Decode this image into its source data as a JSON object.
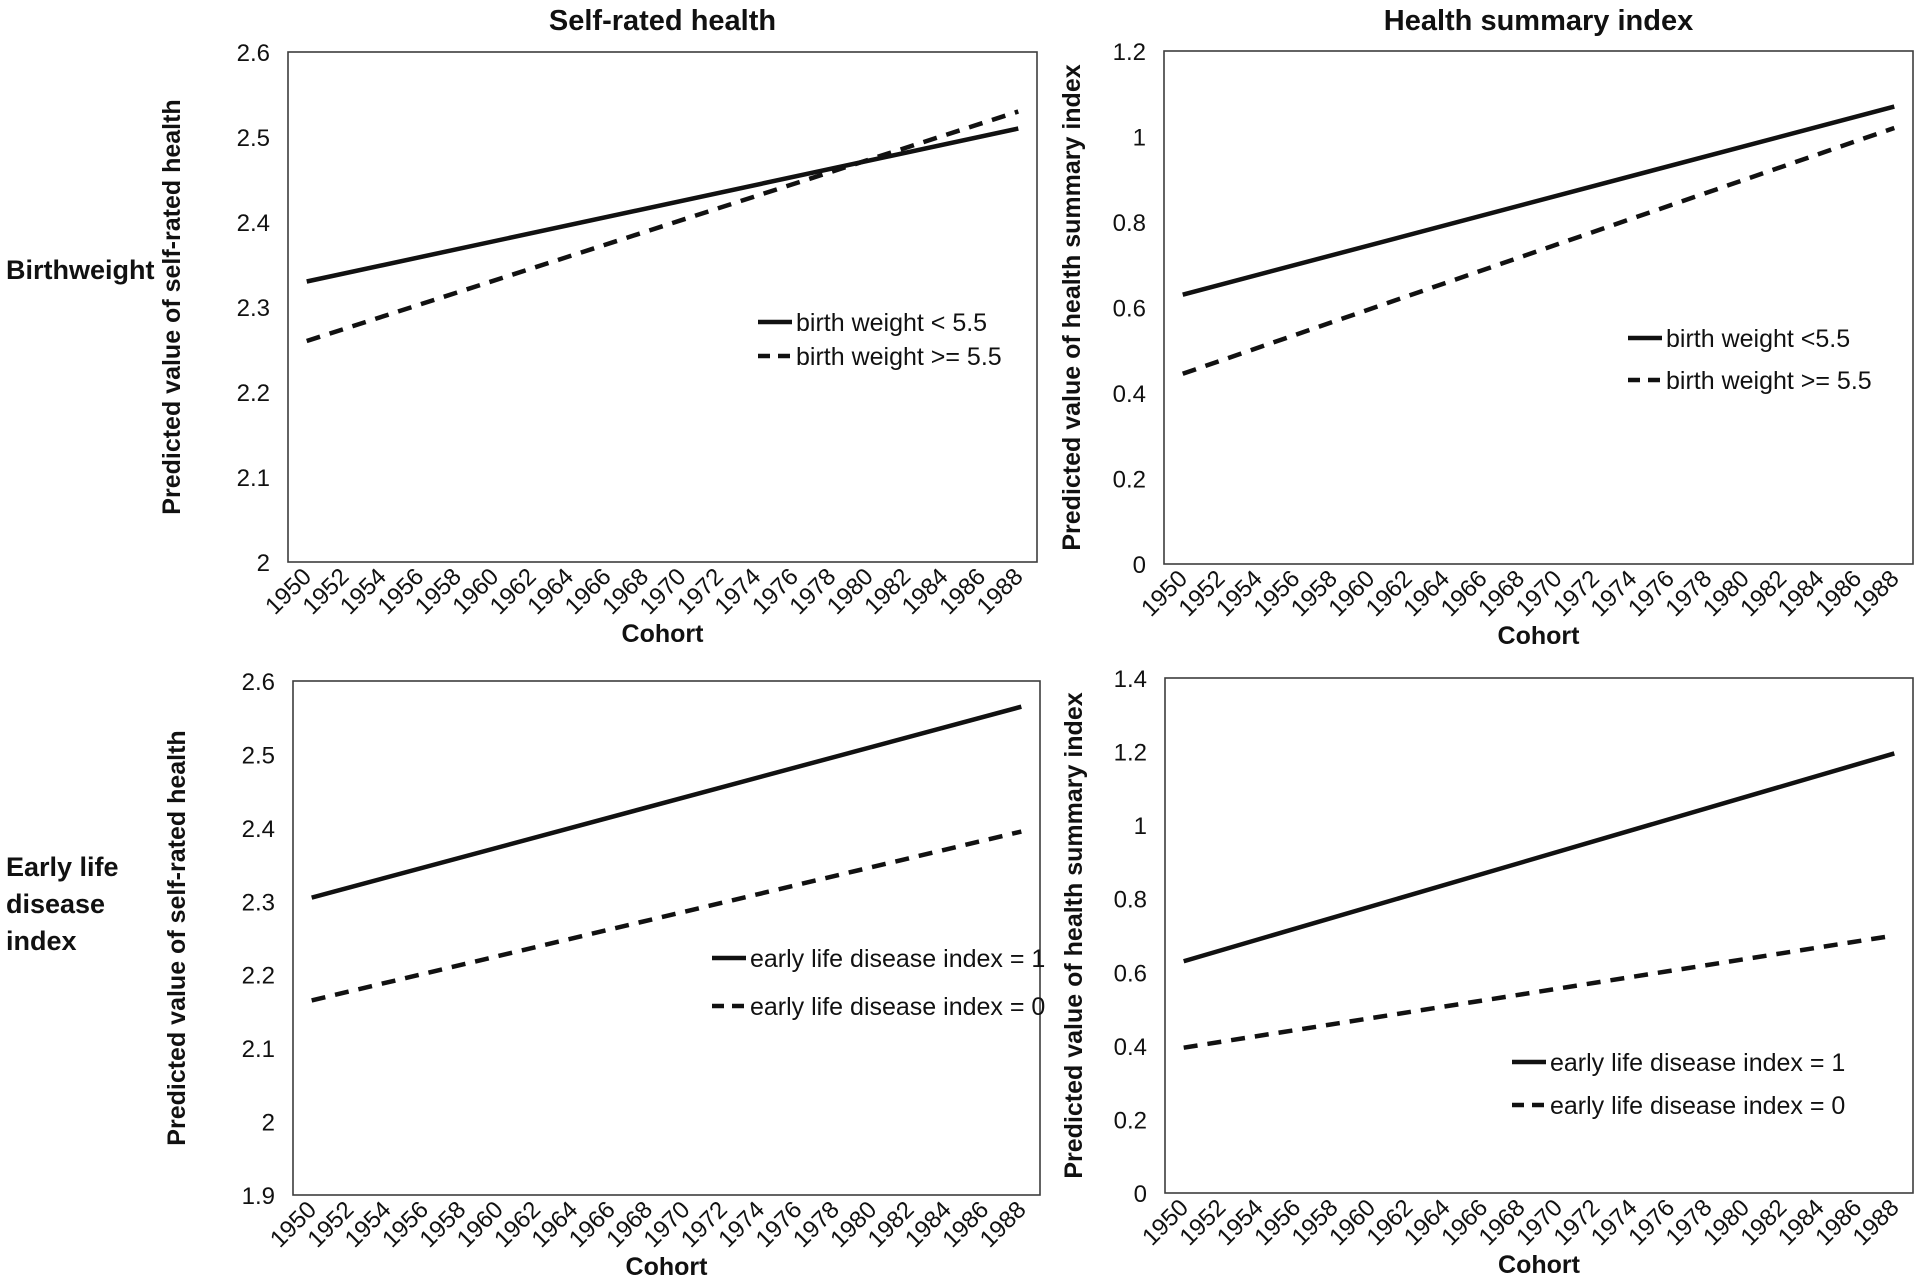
{
  "style": {
    "line_color": "#111111",
    "axis_color": "#3d3d3d",
    "text_color": "#111111",
    "background": "#ffffff"
  },
  "row_labels": [
    {
      "label": "Birthweight"
    },
    {
      "label": "Early life\ndisease\nindex"
    }
  ],
  "column_titles": [
    "Self-rated health",
    "Health summary index"
  ],
  "chart_data": [
    {
      "id": "self-rated-health-by-birthweight",
      "type": "line",
      "title": "Self-rated health",
      "row_label": "Birthweight",
      "xlabel": "Cohort",
      "ylabel": "Predicted value of self-rated health",
      "ylim": [
        2,
        2.6
      ],
      "y_ticks": [
        2,
        2.1,
        2.2,
        2.3,
        2.4,
        2.5,
        2.6
      ],
      "x_tick_labels": [
        "1950",
        "1952",
        "1954",
        "1956",
        "1958",
        "1960",
        "1962",
        "1964",
        "1966",
        "1968",
        "1970",
        "1972",
        "1974",
        "1976",
        "1978",
        "1980",
        "1982",
        "1984",
        "1986",
        "1988"
      ],
      "grid": false,
      "legend_position": "inside-right",
      "series": [
        {
          "name": "birth weight < 5.5",
          "style": "solid",
          "x": [
            1950,
            1988
          ],
          "values": [
            2.33,
            2.51
          ]
        },
        {
          "name": "birth weight >= 5.5",
          "style": "dashed",
          "x": [
            1950,
            1988
          ],
          "values": [
            2.26,
            2.53
          ]
        }
      ]
    },
    {
      "id": "health-summary-index-by-birthweight",
      "type": "line",
      "title": "Health summary index",
      "row_label": "Birthweight",
      "xlabel": "Cohort",
      "ylabel": "Predicted value of health summary index",
      "ylim": [
        0,
        1.2
      ],
      "y_ticks": [
        0,
        0.2,
        0.4,
        0.6,
        0.8,
        1,
        1.2
      ],
      "x_tick_labels": [
        "1950",
        "1952",
        "1954",
        "1956",
        "1958",
        "1960",
        "1962",
        "1964",
        "1966",
        "1968",
        "1970",
        "1972",
        "1974",
        "1976",
        "1978",
        "1980",
        "1982",
        "1984",
        "1986",
        "1988"
      ],
      "grid": false,
      "legend_position": "inside-right",
      "series": [
        {
          "name": "birth weight <5.5",
          "style": "solid",
          "x": [
            1950,
            1988
          ],
          "values": [
            0.63,
            1.07
          ]
        },
        {
          "name": "birth weight >= 5.5",
          "style": "dashed",
          "x": [
            1950,
            1988
          ],
          "values": [
            0.445,
            1.02
          ]
        }
      ]
    },
    {
      "id": "self-rated-health-by-early-life-disease-index",
      "type": "line",
      "title": "",
      "row_label": "Early life disease index",
      "xlabel": "Cohort",
      "ylabel": "Predicted value of self-rated health",
      "ylim": [
        1.9,
        2.6
      ],
      "y_ticks": [
        1.9,
        2,
        2.1,
        2.2,
        2.3,
        2.4,
        2.5,
        2.6
      ],
      "x_tick_labels": [
        "1950",
        "1952",
        "1954",
        "1956",
        "1958",
        "1960",
        "1962",
        "1964",
        "1966",
        "1968",
        "1970",
        "1972",
        "1974",
        "1976",
        "1978",
        "1980",
        "1982",
        "1984",
        "1986",
        "1988"
      ],
      "grid": false,
      "legend_position": "inside-right",
      "series": [
        {
          "name": "early life disease index = 1",
          "style": "solid",
          "x": [
            1950,
            1988
          ],
          "values": [
            2.305,
            2.565
          ]
        },
        {
          "name": "early life disease index = 0",
          "style": "dashed",
          "x": [
            1950,
            1988
          ],
          "values": [
            2.165,
            2.395
          ]
        }
      ]
    },
    {
      "id": "health-summary-index-by-early-life-disease-index",
      "type": "line",
      "title": "",
      "row_label": "Early life disease index",
      "xlabel": "Cohort",
      "ylabel": "Predicted value of health summary index",
      "ylim": [
        0,
        1.4
      ],
      "y_ticks": [
        0,
        0.2,
        0.4,
        0.6,
        0.8,
        1,
        1.2,
        1.4
      ],
      "x_tick_labels": [
        "1950",
        "1952",
        "1954",
        "1956",
        "1958",
        "1960",
        "1962",
        "1964",
        "1966",
        "1968",
        "1970",
        "1972",
        "1974",
        "1976",
        "1978",
        "1980",
        "1982",
        "1984",
        "1986",
        "1988"
      ],
      "grid": false,
      "legend_position": "inside-right",
      "series": [
        {
          "name": "early life disease index = 1",
          "style": "solid",
          "x": [
            1950,
            1988
          ],
          "values": [
            0.63,
            1.195
          ]
        },
        {
          "name": "early life disease index = 0",
          "style": "dashed",
          "x": [
            1950,
            1988
          ],
          "values": [
            0.395,
            0.7
          ]
        }
      ]
    }
  ]
}
